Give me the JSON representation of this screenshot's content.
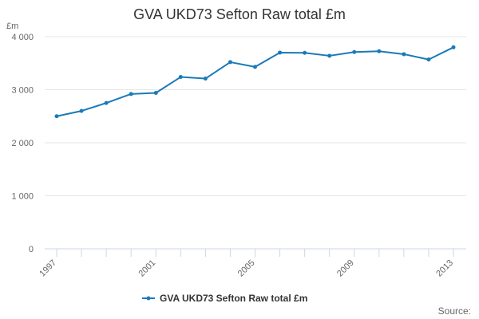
{
  "chart_data": {
    "type": "line",
    "title": "GVA UKD73 Sefton Raw total £m",
    "ylabel": "£m",
    "xlabel": "",
    "x": [
      1997,
      1998,
      1999,
      2000,
      2001,
      2002,
      2003,
      2004,
      2005,
      2006,
      2007,
      2008,
      2009,
      2010,
      2011,
      2012,
      2013
    ],
    "x_tick_labels": [
      "1997",
      "2001",
      "2005",
      "2009",
      "2013"
    ],
    "y_tick_labels": [
      "0",
      "1 000",
      "2 000",
      "3 000",
      "4 000"
    ],
    "ylim": [
      0,
      4000
    ],
    "grid": true,
    "legend_position": "bottom-center",
    "series": [
      {
        "name": "GVA UKD73 Sefton Raw total £m",
        "color": "#1a7ab8",
        "values": [
          2500,
          2600,
          2750,
          2920,
          2940,
          3240,
          3210,
          3520,
          3430,
          3700,
          3695,
          3640,
          3710,
          3725,
          3670,
          3570,
          3800
        ]
      }
    ]
  },
  "credits": "Source:"
}
